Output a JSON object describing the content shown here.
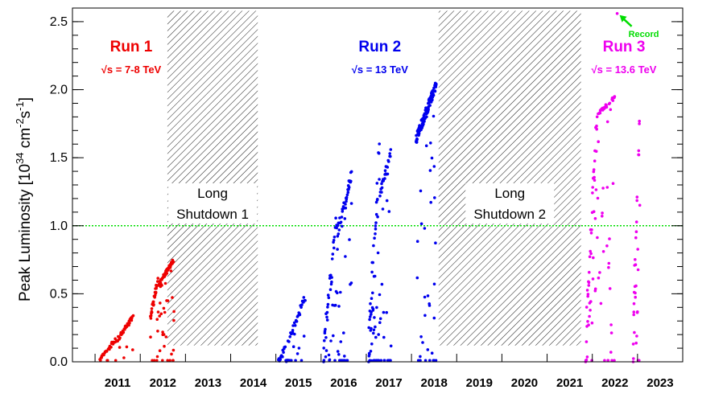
{
  "chart_data": {
    "type": "scatter",
    "title": "",
    "ylabel": {
      "base": "Peak Luminosity [10",
      "exp1": "34",
      "mid": " cm",
      "exp2": "-2",
      "s": "s",
      "exp3": "-1",
      "close": "]"
    },
    "xlim": [
      2010.5,
      2024.0
    ],
    "ylim": [
      0,
      2.6
    ],
    "ytick_labels": [
      "0.0",
      "0.5",
      "1.0",
      "1.5",
      "2.0",
      "2.5"
    ],
    "yticks": [
      0,
      0.5,
      1.0,
      1.5,
      2.0,
      2.5
    ],
    "year_labels": [
      "2011",
      "2012",
      "2013",
      "2014",
      "2015",
      "2016",
      "2017",
      "2018",
      "2019",
      "2020",
      "2021",
      "2022",
      "2023"
    ],
    "reference_line": {
      "y": 1.0,
      "color": "#00dd00"
    },
    "shutdowns": [
      {
        "x0": 2012.6,
        "x1": 2014.6,
        "y0": 0.12,
        "y1": 2.58,
        "line1": "Long",
        "line2": "Shutdown 1"
      },
      {
        "x0": 2018.6,
        "x1": 2021.75,
        "y0": 0.12,
        "y1": 2.58,
        "line1": "Long",
        "line2": "Shutdown 2"
      }
    ],
    "runs": [
      {
        "name": "Run 1",
        "energy_prefix": "√s",
        "energy_suffix": " = 7-8 TeV",
        "color": "#ee0000",
        "label_x": 2011.8,
        "label_y": 2.28,
        "energy_y": 2.12
      },
      {
        "name": "Run 2",
        "energy_prefix": "√s",
        "energy_suffix": " = 13 TeV",
        "color": "#0000ee",
        "label_x": 2017.3,
        "label_y": 2.28,
        "energy_y": 2.12
      },
      {
        "name": "Run 3",
        "energy_prefix": "√s",
        "energy_suffix": " = 13.6 TeV",
        "color": "#ee00ee",
        "label_x": 2022.7,
        "label_y": 2.28,
        "energy_y": 2.12
      }
    ],
    "record": {
      "label": "Record",
      "x": 2022.55,
      "y": 2.56,
      "color": "#00dd00"
    },
    "series": [
      {
        "name": "Run 1",
        "color": "#ee0000",
        "segments": [
          {
            "x0": 2011.1,
            "x1": 2011.45,
            "ymin": 0.0,
            "ymax": 0.18,
            "n": 30,
            "low": 0.05
          },
          {
            "x0": 2011.45,
            "x1": 2011.85,
            "ymin": 0.12,
            "ymax": 0.36,
            "n": 40,
            "low": 0.1
          },
          {
            "x0": 2012.22,
            "x1": 2012.4,
            "ymin": 0.3,
            "ymax": 0.66,
            "n": 35,
            "low": 0.25
          },
          {
            "x0": 2012.4,
            "x1": 2012.75,
            "ymin": 0.55,
            "ymax": 0.77,
            "n": 75,
            "low": 0.25
          }
        ]
      },
      {
        "name": "Run 2",
        "color": "#0000ee",
        "segments": [
          {
            "x0": 2015.05,
            "x1": 2015.3,
            "ymin": 0.0,
            "ymax": 0.18,
            "n": 20,
            "low": 0.3
          },
          {
            "x0": 2015.3,
            "x1": 2015.65,
            "ymin": 0.15,
            "ymax": 0.51,
            "n": 35,
            "low": 0.25
          },
          {
            "x0": 2016.05,
            "x1": 2016.35,
            "ymin": 0.0,
            "ymax": 1.15,
            "n": 45,
            "low": 0.35
          },
          {
            "x0": 2016.35,
            "x1": 2016.68,
            "ymin": 0.9,
            "ymax": 1.43,
            "n": 60,
            "low": 0.3
          },
          {
            "x0": 2017.05,
            "x1": 2017.3,
            "ymin": 0.0,
            "ymax": 1.75,
            "n": 60,
            "low": 0.45
          },
          {
            "x0": 2017.3,
            "x1": 2017.55,
            "ymin": 1.2,
            "ymax": 1.6,
            "n": 40,
            "low": 0.35
          },
          {
            "x0": 2018.1,
            "x1": 2018.55,
            "ymin": 1.6,
            "ymax": 2.08,
            "n": 140,
            "low": 0.25
          }
        ]
      },
      {
        "name": "Run 3",
        "color": "#ee00ee",
        "segments": [
          {
            "x0": 2021.85,
            "x1": 2022.1,
            "ymin": 0.0,
            "ymax": 1.9,
            "n": 50,
            "low": 0.55
          },
          {
            "x0": 2022.1,
            "x1": 2022.5,
            "ymin": 1.8,
            "ymax": 1.96,
            "n": 55,
            "low": 0.45
          },
          {
            "x0": 2022.9,
            "x1": 2023.05,
            "ymin": 0.0,
            "ymax": 2.06,
            "n": 35,
            "low": 0.5
          }
        ]
      }
    ],
    "record_point": {
      "x": 2022.55,
      "y": 2.56
    }
  }
}
